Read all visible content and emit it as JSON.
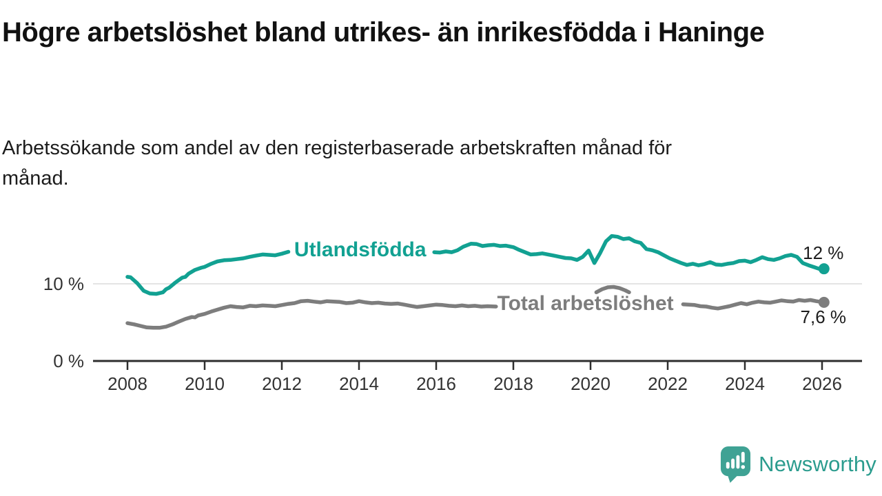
{
  "header": {
    "title": "Högre arbetslöshet bland utrikes- än inrikesfödda i Haninge",
    "subtitle": "Arbetssökande som andel av den registerbaserade arbetskraften månad för månad."
  },
  "branding": {
    "name": "Newsworthy",
    "icon": "newsworthy-speech-bubble-chart-icon",
    "icon_color": "#3fa294",
    "text_color": "#2b9c8e"
  },
  "chart_data": {
    "type": "line",
    "title": "",
    "xlabel": "",
    "ylabel": "",
    "x_unit": "year (monthly data)",
    "xlim": [
      2007.2,
      2027.0
    ],
    "ylim": [
      0,
      18.8
    ],
    "grid": "horizontal-10-only",
    "grid_values": [
      10
    ],
    "x_ticks": [
      2008,
      2010,
      2012,
      2014,
      2016,
      2018,
      2020,
      2022,
      2024,
      2026
    ],
    "y_ticks": [
      {
        "value": 0,
        "label": "0 %"
      },
      {
        "value": 10,
        "label": "10 %"
      }
    ],
    "axis_color": "#2e2e2e",
    "grid_color": "#dcdcdc",
    "tick_label_color": "#333333",
    "value_label_color": "#1d1d1d",
    "legend_position": "inline-labels-on-lines",
    "series": [
      {
        "name": "Utlandsfödda",
        "color": "#12a192",
        "end_label": "12 %",
        "end_label_side": "above",
        "end_value": 12.0,
        "label_at": {
          "x": 2012.32,
          "y": 14.45
        },
        "segments": [
          [
            [
              2008.0,
              10.9
            ],
            [
              2008.08,
              10.85
            ],
            [
              2008.25,
              10.1
            ],
            [
              2008.42,
              9.1
            ],
            [
              2008.58,
              8.75
            ],
            [
              2008.75,
              8.7
            ],
            [
              2008.92,
              8.9
            ],
            [
              2009.0,
              9.3
            ],
            [
              2009.08,
              9.5
            ],
            [
              2009.25,
              10.2
            ],
            [
              2009.42,
              10.8
            ],
            [
              2009.5,
              10.9
            ],
            [
              2009.58,
              11.3
            ],
            [
              2009.75,
              11.8
            ],
            [
              2009.92,
              12.1
            ],
            [
              2010.0,
              12.2
            ],
            [
              2010.17,
              12.6
            ],
            [
              2010.33,
              12.9
            ],
            [
              2010.5,
              13.05
            ],
            [
              2010.67,
              13.1
            ],
            [
              2010.83,
              13.2
            ],
            [
              2011.0,
              13.3
            ],
            [
              2011.17,
              13.5
            ],
            [
              2011.33,
              13.65
            ],
            [
              2011.5,
              13.8
            ],
            [
              2011.67,
              13.75
            ],
            [
              2011.83,
              13.7
            ],
            [
              2012.0,
              13.9
            ],
            [
              2012.17,
              14.15
            ]
          ],
          [
            [
              2015.95,
              14.1
            ],
            [
              2016.1,
              14.05
            ],
            [
              2016.25,
              14.2
            ],
            [
              2016.4,
              14.1
            ],
            [
              2016.55,
              14.35
            ],
            [
              2016.7,
              14.8
            ],
            [
              2016.9,
              15.2
            ],
            [
              2017.05,
              15.15
            ],
            [
              2017.2,
              14.9
            ],
            [
              2017.35,
              15.0
            ],
            [
              2017.5,
              15.05
            ],
            [
              2017.65,
              14.9
            ],
            [
              2017.8,
              14.95
            ],
            [
              2018.0,
              14.75
            ],
            [
              2018.15,
              14.4
            ],
            [
              2018.3,
              14.1
            ],
            [
              2018.45,
              13.8
            ],
            [
              2018.6,
              13.85
            ],
            [
              2018.75,
              13.95
            ],
            [
              2018.9,
              13.8
            ],
            [
              2019.05,
              13.65
            ],
            [
              2019.2,
              13.5
            ],
            [
              2019.35,
              13.35
            ],
            [
              2019.5,
              13.3
            ],
            [
              2019.65,
              13.1
            ],
            [
              2019.8,
              13.5
            ],
            [
              2019.95,
              14.3
            ],
            [
              2020.1,
              12.7
            ],
            [
              2020.25,
              14.0
            ],
            [
              2020.4,
              15.5
            ],
            [
              2020.55,
              16.2
            ],
            [
              2020.7,
              16.1
            ],
            [
              2020.85,
              15.8
            ],
            [
              2021.0,
              15.9
            ],
            [
              2021.15,
              15.5
            ],
            [
              2021.3,
              15.3
            ],
            [
              2021.45,
              14.5
            ],
            [
              2021.6,
              14.35
            ],
            [
              2021.75,
              14.1
            ],
            [
              2021.9,
              13.7
            ],
            [
              2022.05,
              13.3
            ],
            [
              2022.2,
              13.0
            ],
            [
              2022.35,
              12.7
            ],
            [
              2022.5,
              12.45
            ],
            [
              2022.65,
              12.6
            ],
            [
              2022.8,
              12.4
            ],
            [
              2022.95,
              12.55
            ],
            [
              2023.1,
              12.8
            ],
            [
              2023.25,
              12.5
            ],
            [
              2023.4,
              12.45
            ],
            [
              2023.55,
              12.6
            ],
            [
              2023.7,
              12.7
            ],
            [
              2023.85,
              12.95
            ],
            [
              2024.0,
              13.0
            ],
            [
              2024.15,
              12.8
            ],
            [
              2024.3,
              13.1
            ],
            [
              2024.45,
              13.45
            ],
            [
              2024.6,
              13.2
            ],
            [
              2024.75,
              13.1
            ],
            [
              2024.9,
              13.3
            ],
            [
              2025.05,
              13.6
            ],
            [
              2025.2,
              13.75
            ],
            [
              2025.35,
              13.5
            ],
            [
              2025.5,
              12.7
            ],
            [
              2025.65,
              12.4
            ],
            [
              2025.8,
              12.15
            ],
            [
              2025.92,
              11.95
            ],
            [
              2026.05,
              11.95
            ]
          ]
        ]
      },
      {
        "name": "Total arbetslöshet",
        "color": "#7d7d7d",
        "end_label": "7,6 %",
        "end_label_side": "below",
        "end_value": 7.6,
        "label_at": {
          "x": 2017.58,
          "y": 7.5
        },
        "segments": [
          [
            [
              2008.0,
              4.9
            ],
            [
              2008.17,
              4.75
            ],
            [
              2008.33,
              4.55
            ],
            [
              2008.5,
              4.35
            ],
            [
              2008.67,
              4.3
            ],
            [
              2008.83,
              4.3
            ],
            [
              2009.0,
              4.45
            ],
            [
              2009.17,
              4.75
            ],
            [
              2009.33,
              5.1
            ],
            [
              2009.5,
              5.45
            ],
            [
              2009.67,
              5.7
            ],
            [
              2009.75,
              5.65
            ],
            [
              2009.83,
              5.9
            ],
            [
              2010.0,
              6.1
            ],
            [
              2010.17,
              6.4
            ],
            [
              2010.33,
              6.65
            ],
            [
              2010.5,
              6.9
            ],
            [
              2010.67,
              7.1
            ],
            [
              2010.83,
              7.0
            ],
            [
              2011.0,
              6.95
            ],
            [
              2011.17,
              7.15
            ],
            [
              2011.33,
              7.1
            ],
            [
              2011.5,
              7.2
            ],
            [
              2011.67,
              7.15
            ],
            [
              2011.83,
              7.1
            ],
            [
              2012.0,
              7.25
            ],
            [
              2012.17,
              7.4
            ],
            [
              2012.33,
              7.5
            ],
            [
              2012.5,
              7.75
            ],
            [
              2012.67,
              7.8
            ],
            [
              2012.83,
              7.7
            ],
            [
              2013.0,
              7.6
            ],
            [
              2013.17,
              7.75
            ],
            [
              2013.33,
              7.7
            ],
            [
              2013.5,
              7.65
            ],
            [
              2013.67,
              7.5
            ],
            [
              2013.83,
              7.55
            ],
            [
              2014.0,
              7.75
            ],
            [
              2014.17,
              7.6
            ],
            [
              2014.33,
              7.5
            ],
            [
              2014.5,
              7.55
            ],
            [
              2014.67,
              7.45
            ],
            [
              2014.83,
              7.4
            ],
            [
              2015.0,
              7.45
            ],
            [
              2015.17,
              7.3
            ],
            [
              2015.33,
              7.15
            ],
            [
              2015.5,
              7.0
            ],
            [
              2015.67,
              7.1
            ],
            [
              2015.83,
              7.2
            ],
            [
              2016.0,
              7.3
            ],
            [
              2016.17,
              7.25
            ],
            [
              2016.33,
              7.15
            ],
            [
              2016.5,
              7.1
            ],
            [
              2016.67,
              7.2
            ],
            [
              2016.83,
              7.1
            ],
            [
              2017.0,
              7.15
            ],
            [
              2017.17,
              7.05
            ],
            [
              2017.33,
              7.1
            ],
            [
              2017.55,
              7.05
            ]
          ],
          [
            [
              2020.15,
              8.9
            ],
            [
              2020.3,
              9.3
            ],
            [
              2020.45,
              9.55
            ],
            [
              2020.6,
              9.6
            ],
            [
              2020.75,
              9.45
            ],
            [
              2020.9,
              9.15
            ],
            [
              2021.0,
              8.9
            ]
          ],
          [
            [
              2022.4,
              7.35
            ],
            [
              2022.55,
              7.3
            ],
            [
              2022.7,
              7.25
            ],
            [
              2022.85,
              7.1
            ],
            [
              2023.0,
              7.05
            ],
            [
              2023.15,
              6.9
            ],
            [
              2023.3,
              6.8
            ],
            [
              2023.45,
              6.95
            ],
            [
              2023.6,
              7.1
            ],
            [
              2023.75,
              7.3
            ],
            [
              2023.9,
              7.5
            ],
            [
              2024.05,
              7.35
            ],
            [
              2024.2,
              7.55
            ],
            [
              2024.35,
              7.7
            ],
            [
              2024.5,
              7.6
            ],
            [
              2024.65,
              7.55
            ],
            [
              2024.8,
              7.7
            ],
            [
              2024.95,
              7.85
            ],
            [
              2025.1,
              7.75
            ],
            [
              2025.25,
              7.7
            ],
            [
              2025.4,
              7.9
            ],
            [
              2025.55,
              7.8
            ],
            [
              2025.7,
              7.9
            ],
            [
              2025.85,
              7.75
            ],
            [
              2026.05,
              7.6
            ]
          ]
        ]
      }
    ]
  }
}
